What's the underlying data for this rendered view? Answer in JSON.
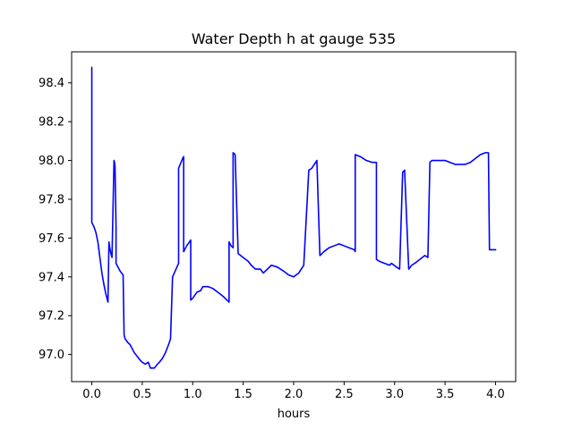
{
  "chart_data": {
    "type": "line",
    "title": "Water Depth h at gauge 535",
    "xlabel": "hours",
    "ylabel": "",
    "xlim": [
      -0.2,
      4.2
    ],
    "ylim": [
      96.86,
      98.56
    ],
    "xticks": [
      0.0,
      0.5,
      1.0,
      1.5,
      2.0,
      2.5,
      3.0,
      3.5,
      4.0
    ],
    "xtick_labels": [
      "0.0",
      "0.5",
      "1.0",
      "1.5",
      "2.0",
      "2.5",
      "3.0",
      "3.5",
      "4.0"
    ],
    "yticks": [
      97.0,
      97.2,
      97.4,
      97.6,
      97.8,
      98.0,
      98.2,
      98.4
    ],
    "ytick_labels": [
      "97.0",
      "97.2",
      "97.4",
      "97.6",
      "97.8",
      "98.0",
      "98.2",
      "98.4"
    ],
    "grid": false,
    "series": [
      {
        "name": "",
        "color": "#0000ff",
        "x": [
          0.0,
          0.0,
          0.0,
          0.0,
          0.01,
          0.02,
          0.04,
          0.06,
          0.08,
          0.1,
          0.12,
          0.14,
          0.16,
          0.17,
          0.175,
          0.185,
          0.2,
          0.22,
          0.225,
          0.23,
          0.24,
          0.24,
          0.26,
          0.28,
          0.31,
          0.32,
          0.33,
          0.36,
          0.38,
          0.4,
          0.42,
          0.45,
          0.48,
          0.5,
          0.53,
          0.56,
          0.58,
          0.6,
          0.62,
          0.65,
          0.67,
          0.7,
          0.73,
          0.76,
          0.78,
          0.8,
          0.8,
          0.86,
          0.86,
          0.9,
          0.91,
          0.91,
          0.94,
          0.98,
          0.98,
          1.0,
          1.04,
          1.08,
          1.1,
          1.15,
          1.2,
          1.25,
          1.3,
          1.36,
          1.36,
          1.38,
          1.4,
          1.4,
          1.42,
          1.45,
          1.5,
          1.55,
          1.58,
          1.62,
          1.67,
          1.7,
          1.74,
          1.78,
          1.84,
          1.9,
          1.95,
          2.0,
          2.05,
          2.1,
          2.15,
          2.18,
          2.23,
          2.26,
          2.3,
          2.35,
          2.4,
          2.45,
          2.5,
          2.55,
          2.6,
          2.61,
          2.61,
          2.66,
          2.72,
          2.78,
          2.79,
          2.82,
          2.82,
          2.85,
          2.9,
          2.95,
          2.97,
          3.02,
          3.05,
          3.05,
          3.08,
          3.1,
          3.1,
          3.14,
          3.17,
          3.2,
          3.25,
          3.3,
          3.33,
          3.35,
          3.37,
          3.38,
          3.45,
          3.5,
          3.55,
          3.6,
          3.65,
          3.7,
          3.75,
          3.8,
          3.85,
          3.9,
          3.93,
          3.94,
          3.95,
          3.97,
          4.0
        ],
        "values": [
          97.98,
          98.48,
          98.0,
          97.68,
          97.67,
          97.66,
          97.63,
          97.58,
          97.5,
          97.42,
          97.36,
          97.31,
          97.27,
          97.58,
          97.56,
          97.53,
          97.5,
          98.0,
          97.99,
          97.97,
          97.66,
          97.47,
          97.45,
          97.43,
          97.41,
          97.1,
          97.08,
          97.06,
          97.05,
          97.03,
          97.01,
          96.99,
          96.97,
          96.96,
          96.95,
          96.96,
          96.93,
          96.93,
          96.93,
          96.95,
          96.96,
          96.98,
          97.01,
          97.05,
          97.08,
          97.4,
          97.4,
          97.47,
          97.96,
          98.01,
          98.02,
          97.53,
          97.56,
          97.59,
          97.28,
          97.29,
          97.32,
          97.33,
          97.35,
          97.35,
          97.34,
          97.32,
          97.3,
          97.27,
          97.58,
          97.56,
          97.55,
          98.04,
          98.03,
          97.52,
          97.5,
          97.48,
          97.46,
          97.44,
          97.44,
          97.42,
          97.44,
          97.46,
          97.45,
          97.43,
          97.41,
          97.4,
          97.42,
          97.46,
          97.95,
          97.96,
          98.0,
          97.51,
          97.53,
          97.55,
          97.56,
          97.57,
          97.56,
          97.55,
          97.54,
          97.53,
          98.03,
          98.02,
          98.0,
          97.99,
          97.99,
          97.99,
          97.49,
          97.48,
          97.47,
          97.46,
          97.47,
          97.45,
          97.44,
          97.44,
          97.94,
          97.95,
          97.94,
          97.44,
          97.46,
          97.47,
          97.49,
          97.51,
          97.5,
          97.99,
          98.0,
          98.0,
          98.0,
          98.0,
          97.99,
          97.98,
          97.98,
          97.98,
          97.99,
          98.01,
          98.03,
          98.04,
          98.04,
          97.54,
          97.54,
          97.54,
          97.54
        ]
      }
    ]
  }
}
